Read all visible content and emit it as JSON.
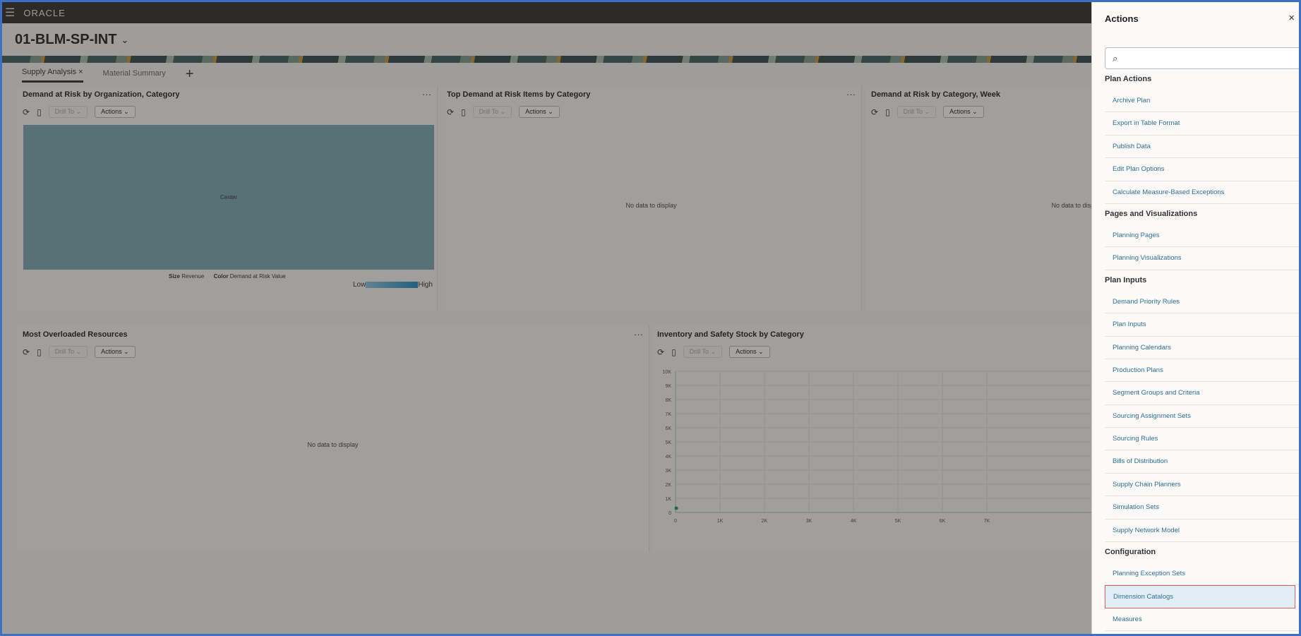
{
  "app": {
    "logo": "ORACLE",
    "title": "01-BLM-SP-INT"
  },
  "tabs": [
    {
      "label": "Supply Analysis",
      "close": "×"
    },
    {
      "label": "Material Summary"
    },
    {
      "label": "+"
    }
  ],
  "toolbar": {
    "drill_to": "Drill To",
    "actions": "Actions",
    "more": "···"
  },
  "panels": {
    "p1": {
      "title": "Demand at Risk by Organization, Category",
      "node": "Center",
      "size_label": "Size",
      "size_value": "Revenue",
      "color_label": "Color",
      "color_value": "Demand at Risk Value",
      "low": "Low",
      "high": "High",
      "fill": "#79a8b4"
    },
    "p2": {
      "title": "Top Demand at Risk Items by Category",
      "nodata": "No data to display"
    },
    "p3": {
      "title": "Demand at Risk by Category, Week",
      "nodata": "No data to display"
    },
    "p4": {
      "title": "Most Overloaded Resources",
      "nodata": "No data to display"
    },
    "p5": {
      "title": "Inventory and Safety Stock by Category"
    }
  },
  "chart_data": {
    "type": "scatter",
    "x_ticks": [
      "0",
      "1K",
      "2K",
      "3K",
      "4K",
      "5K",
      "6K",
      "7K"
    ],
    "y_ticks": [
      "0",
      "1K",
      "2K",
      "3K",
      "4K",
      "5K",
      "6K",
      "7K",
      "8K",
      "9K",
      "10K"
    ],
    "xlim": [
      0,
      7000
    ],
    "ylim": [
      0,
      10000
    ],
    "grid": true,
    "points": [
      {
        "x": 0,
        "y": 300
      }
    ],
    "color": "#2a8a7a"
  },
  "drawer": {
    "title": "Actions",
    "close": "×",
    "sections": [
      {
        "title": "Plan Actions",
        "items": [
          "Archive Plan",
          "Export in Table Format",
          "Publish Data",
          "Edit Plan Options",
          "Calculate Measure-Based Exceptions"
        ]
      },
      {
        "title": "Pages and Visualizations",
        "items": [
          "Planning Pages",
          "Planning Visualizations"
        ]
      },
      {
        "title": "Plan Inputs",
        "items": [
          "Demand Priority Rules",
          "Plan Inputs",
          "Planning Calendars",
          "Production Plans",
          "Segment Groups and Criteria",
          "Sourcing Assignment Sets",
          "Sourcing Rules",
          "Bills of Distribution",
          "Supply Chain Planners",
          "Simulation Sets",
          "Supply Network Model"
        ]
      },
      {
        "title": "Configuration",
        "items": [
          "Planning Exception Sets",
          "Dimension Catalogs",
          "Measures"
        ]
      }
    ],
    "selected": "Dimension Catalogs"
  }
}
